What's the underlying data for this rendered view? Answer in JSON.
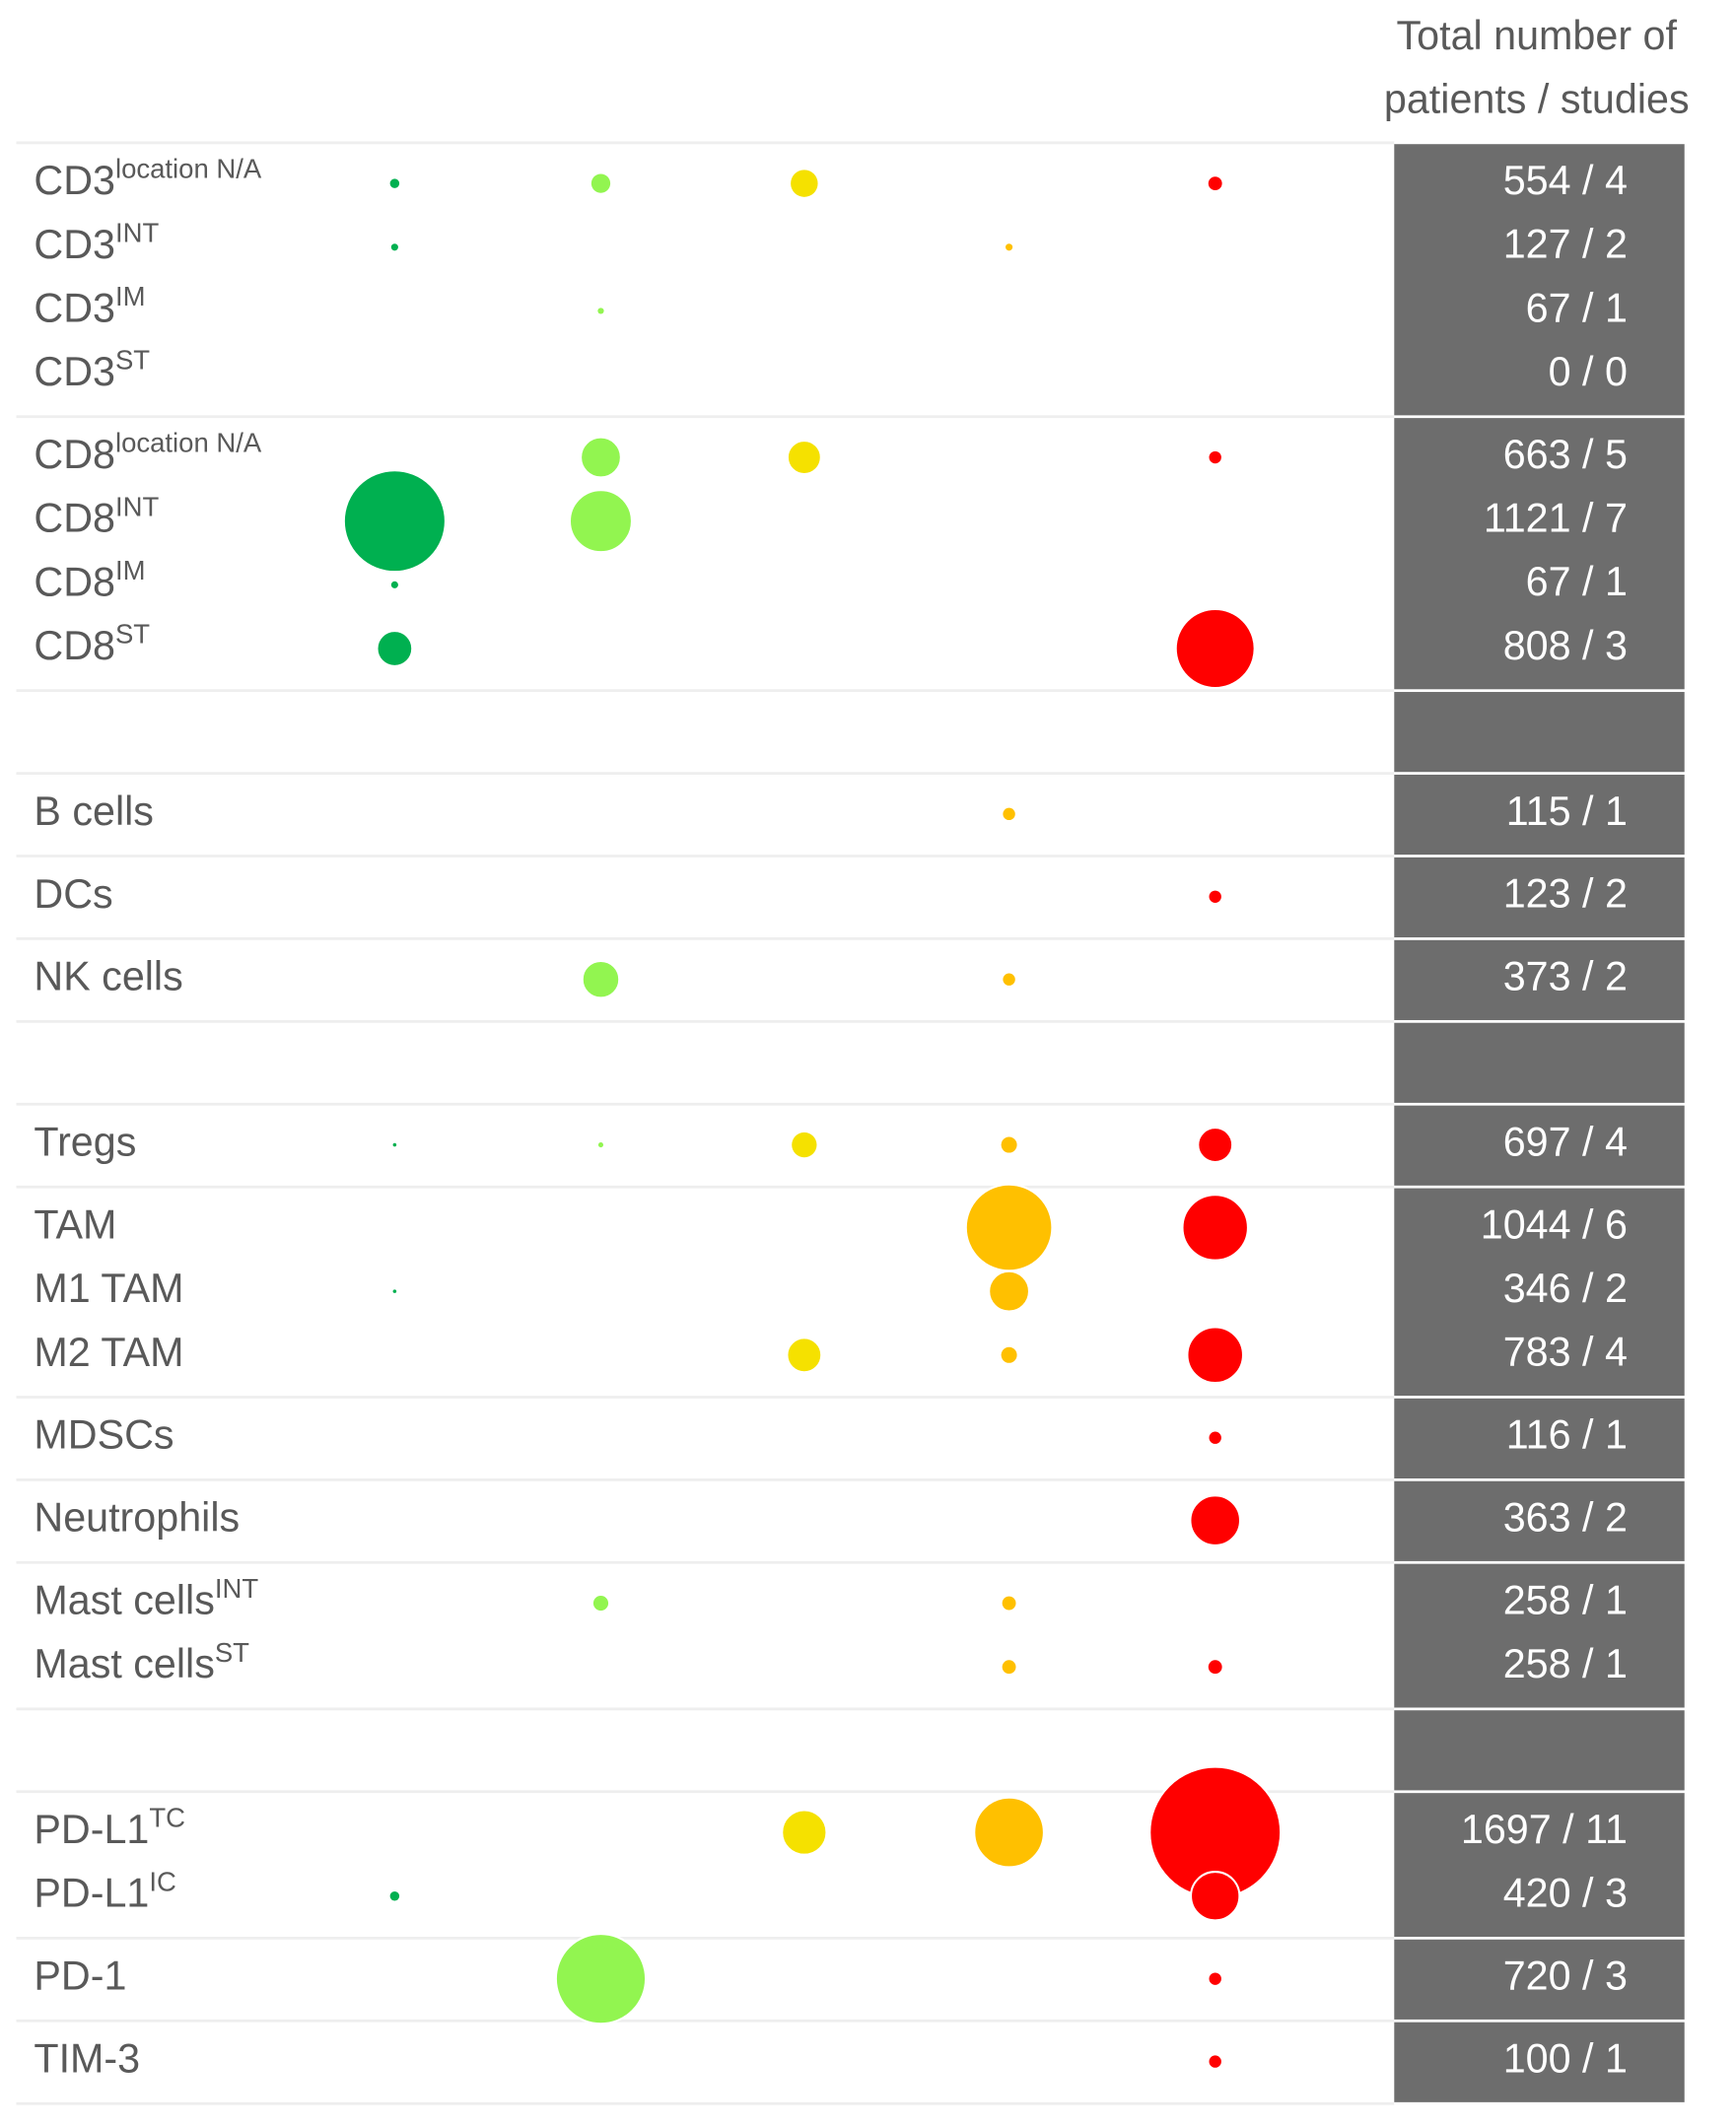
{
  "header": {
    "lines": [
      "Total number of",
      "patients / studies"
    ]
  },
  "columns": {
    "colors": [
      "#00b050",
      "#92f550",
      "#f5e100",
      "#ffc000",
      "#ff0000"
    ]
  },
  "groups": [
    {
      "rows": [
        {
          "label": "CD3",
          "sup": "location N/A",
          "total": "554 / 4",
          "bubbles": [
            7,
            29,
            59,
            null,
            15
          ]
        },
        {
          "label": "CD3",
          "sup": "INT",
          "total": "127 / 2",
          "bubbles": [
            4,
            null,
            null,
            4,
            null
          ]
        },
        {
          "label": "CD3",
          "sup": "IM",
          "total": "67 / 1",
          "bubbles": [
            null,
            3,
            null,
            null,
            null
          ]
        },
        {
          "label": "CD3",
          "sup": "ST",
          "total": "0 / 0",
          "bubbles": [
            null,
            null,
            null,
            null,
            null
          ]
        }
      ]
    },
    {
      "rows": [
        {
          "label": "CD8",
          "sup": "location N/A",
          "total": "663 / 5",
          "bubbles": [
            null,
            130,
            90,
            null,
            12
          ]
        },
        {
          "label": "CD8",
          "sup": "INT",
          "total": "1121 / 7",
          "bubbles": [
            830,
            310,
            null,
            null,
            null
          ]
        },
        {
          "label": "CD8",
          "sup": "IM",
          "total": "67 / 1",
          "bubbles": [
            4,
            null,
            null,
            null,
            null
          ]
        },
        {
          "label": "CD8",
          "sup": "ST",
          "total": "808 / 3",
          "bubbles": [
            100,
            null,
            null,
            null,
            500
          ]
        }
      ]
    },
    {
      "rows": []
    },
    {
      "rows": [
        {
          "label": "B cells",
          "total": "115 / 1",
          "bubbles": [
            null,
            null,
            null,
            12,
            null
          ]
        }
      ]
    },
    {
      "rows": [
        {
          "label": "DCs",
          "total": "123 / 2",
          "bubbles": [
            null,
            null,
            null,
            null,
            12
          ]
        }
      ]
    },
    {
      "rows": [
        {
          "label": "NK cells",
          "total": "373 / 2",
          "bubbles": [
            null,
            110,
            null,
            12,
            null
          ]
        }
      ]
    },
    {
      "rows": []
    },
    {
      "rows": [
        {
          "label": "Tregs",
          "total": "697 / 4",
          "bubbles": [
            1,
            2,
            50,
            20,
            95
          ]
        }
      ]
    },
    {
      "rows": [
        {
          "label": "TAM",
          "total": "1044 / 6",
          "bubbles": [
            null,
            null,
            null,
            600,
            345
          ]
        },
        {
          "label": "M1 TAM",
          "total": "346 / 2",
          "bubbles": [
            1,
            null,
            null,
            130,
            null
          ]
        },
        {
          "label": "M2 TAM",
          "total": "783 / 4",
          "bubbles": [
            null,
            null,
            95,
            20,
            250
          ]
        }
      ]
    },
    {
      "rows": [
        {
          "label": "MDSCs",
          "total": "116 / 1",
          "bubbles": [
            null,
            null,
            null,
            null,
            12
          ]
        }
      ]
    },
    {
      "rows": [
        {
          "label": "Neutrophils",
          "total": "363 / 2",
          "bubbles": [
            null,
            null,
            null,
            null,
            200
          ]
        }
      ]
    },
    {
      "rows": [
        {
          "label": "Mast cells",
          "sup": "INT",
          "total": "258 / 1",
          "bubbles": [
            null,
            18,
            null,
            15,
            null
          ]
        },
        {
          "label": "Mast cells",
          "sup": "ST",
          "total": "258 / 1",
          "bubbles": [
            null,
            null,
            null,
            15,
            15
          ]
        }
      ]
    },
    {
      "rows": []
    },
    {
      "rows": [
        {
          "label": "PD-L1",
          "sup": "TC",
          "total": "1697 / 11",
          "bubbles": [
            null,
            null,
            160,
            390,
            1380
          ]
        },
        {
          "label": "PD-L1",
          "sup": "IC",
          "total": "420 / 3",
          "bubbles": [
            7,
            null,
            null,
            null,
            190
          ]
        }
      ]
    },
    {
      "rows": [
        {
          "label": "PD-1",
          "total": "720 / 3",
          "bubbles": [
            null,
            650,
            null,
            null,
            12
          ]
        }
      ]
    },
    {
      "rows": [
        {
          "label": "TIM-3",
          "total": "100 / 1",
          "bubbles": [
            null,
            null,
            null,
            null,
            12
          ]
        }
      ]
    }
  ]
}
